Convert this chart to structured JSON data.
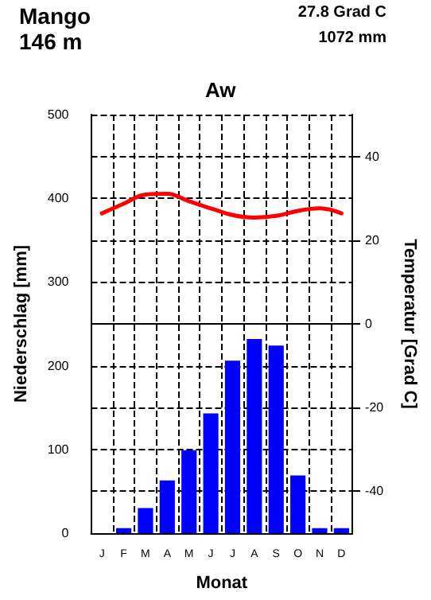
{
  "chart_data": {
    "type": "bar",
    "title": "Aw",
    "annotations": [
      "Mango",
      "146 m",
      "27.8 Grad C",
      "1072 mm"
    ],
    "xlabel": "Monat",
    "ylabel": "Niederschlag [mm]",
    "y2label": "Temperatur [Grad C]",
    "categories": [
      "J",
      "F",
      "M",
      "A",
      "M",
      "J",
      "J",
      "A",
      "S",
      "O",
      "N",
      "D"
    ],
    "series": [
      {
        "color": "#0000ff",
        "values": [
          0,
          6,
          30,
          63,
          99,
          143,
          206,
          232,
          224,
          69,
          6,
          6
        ]
      },
      {
        "type": "line",
        "axis": "y2",
        "color": "#ff0000",
        "values": [
          26.4,
          28.7,
          30.9,
          31.1,
          29.3,
          27.6,
          26.0,
          25.4,
          25.8,
          27.0,
          27.6,
          26.4
        ]
      }
    ],
    "ylim": [
      0,
      500
    ],
    "yticks": [
      0,
      100,
      200,
      300,
      400,
      500
    ],
    "y2lim": [
      -50,
      50
    ],
    "y2ticks": [
      -40,
      -20,
      0,
      20,
      40
    ],
    "ref_lines": [
      {
        "axis": "y2",
        "value": 0
      }
    ],
    "grid": true,
    "marker": "none",
    "line_style": "solid"
  }
}
